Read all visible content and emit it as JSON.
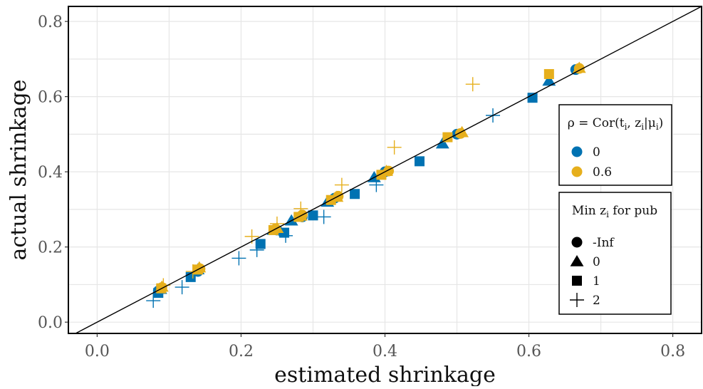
{
  "chart_data": {
    "type": "scatter",
    "title": "",
    "xlabel": "estimated shrinkage",
    "ylabel": "actual shrinkage",
    "xlim": [
      -0.04,
      0.84
    ],
    "ylim": [
      -0.03,
      0.84
    ],
    "xticks": [
      0.0,
      0.2,
      0.4,
      0.6,
      0.8
    ],
    "yticks": [
      0.0,
      0.2,
      0.4,
      0.6,
      0.8
    ],
    "xtick_labels": [
      "0.0",
      "0.2",
      "0.4",
      "0.6",
      "0.8"
    ],
    "ytick_labels": [
      "0.0",
      "0.2",
      "0.4",
      "0.6",
      "0.8"
    ],
    "grid": true,
    "reference_line": "y = x",
    "colors": {
      "0": "#0072B2",
      "0.6": "#E6AF1C"
    },
    "legend_color": {
      "title": "ρ = Cor(t_i, z_i | μ_i)",
      "entries": [
        {
          "label": "0",
          "color": "#0072B2"
        },
        {
          "label": "0.6",
          "color": "#E6AF1C"
        }
      ]
    },
    "legend_shape": {
      "title": "Min z_i for pub",
      "entries": [
        {
          "label": "-Inf",
          "shape": "circle"
        },
        {
          "label": "0",
          "shape": "triangle"
        },
        {
          "label": "1",
          "shape": "square"
        },
        {
          "label": "2",
          "shape": "plus"
        }
      ]
    },
    "points": [
      {
        "x": 0.085,
        "y": 0.083,
        "rho": "0",
        "min_z": "-Inf"
      },
      {
        "x": 0.14,
        "y": 0.135,
        "rho": "0",
        "min_z": "-Inf"
      },
      {
        "x": 0.25,
        "y": 0.245,
        "rho": "0",
        "min_z": "-Inf"
      },
      {
        "x": 0.285,
        "y": 0.28,
        "rho": "0",
        "min_z": "-Inf"
      },
      {
        "x": 0.33,
        "y": 0.33,
        "rho": "0",
        "min_z": "-Inf"
      },
      {
        "x": 0.4,
        "y": 0.4,
        "rho": "0",
        "min_z": "-Inf"
      },
      {
        "x": 0.5,
        "y": 0.5,
        "rho": "0",
        "min_z": "-Inf"
      },
      {
        "x": 0.665,
        "y": 0.672,
        "rho": "0",
        "min_z": "-Inf"
      },
      {
        "x": 0.088,
        "y": 0.088,
        "rho": "0",
        "min_z": "0"
      },
      {
        "x": 0.14,
        "y": 0.14,
        "rho": "0",
        "min_z": "0"
      },
      {
        "x": 0.245,
        "y": 0.245,
        "rho": "0",
        "min_z": "0"
      },
      {
        "x": 0.27,
        "y": 0.27,
        "rho": "0",
        "min_z": "0"
      },
      {
        "x": 0.32,
        "y": 0.32,
        "rho": "0",
        "min_z": "0"
      },
      {
        "x": 0.385,
        "y": 0.385,
        "rho": "0",
        "min_z": "0"
      },
      {
        "x": 0.48,
        "y": 0.475,
        "rho": "0",
        "min_z": "0"
      },
      {
        "x": 0.628,
        "y": 0.642,
        "rho": "0",
        "min_z": "0"
      },
      {
        "x": 0.085,
        "y": 0.078,
        "rho": "0",
        "min_z": "1"
      },
      {
        "x": 0.13,
        "y": 0.12,
        "rho": "0",
        "min_z": "1"
      },
      {
        "x": 0.227,
        "y": 0.208,
        "rho": "0",
        "min_z": "1"
      },
      {
        "x": 0.26,
        "y": 0.238,
        "rho": "0",
        "min_z": "1"
      },
      {
        "x": 0.3,
        "y": 0.284,
        "rho": "0",
        "min_z": "1"
      },
      {
        "x": 0.358,
        "y": 0.341,
        "rho": "0",
        "min_z": "1"
      },
      {
        "x": 0.448,
        "y": 0.428,
        "rho": "0",
        "min_z": "1"
      },
      {
        "x": 0.605,
        "y": 0.597,
        "rho": "0",
        "min_z": "1"
      },
      {
        "x": 0.078,
        "y": 0.057,
        "rho": "0",
        "min_z": "2"
      },
      {
        "x": 0.118,
        "y": 0.093,
        "rho": "0",
        "min_z": "2"
      },
      {
        "x": 0.197,
        "y": 0.17,
        "rho": "0",
        "min_z": "2"
      },
      {
        "x": 0.222,
        "y": 0.192,
        "rho": "0",
        "min_z": "2"
      },
      {
        "x": 0.262,
        "y": 0.23,
        "rho": "0",
        "min_z": "2"
      },
      {
        "x": 0.315,
        "y": 0.28,
        "rho": "0",
        "min_z": "2"
      },
      {
        "x": 0.388,
        "y": 0.365,
        "rho": "0",
        "min_z": "2"
      },
      {
        "x": 0.55,
        "y": 0.55,
        "rho": "0",
        "min_z": "2"
      },
      {
        "x": 0.09,
        "y": 0.092,
        "rho": "0.6",
        "min_z": "-Inf"
      },
      {
        "x": 0.143,
        "y": 0.142,
        "rho": "0.6",
        "min_z": "-Inf"
      },
      {
        "x": 0.248,
        "y": 0.248,
        "rho": "0.6",
        "min_z": "-Inf"
      },
      {
        "x": 0.285,
        "y": 0.285,
        "rho": "0.6",
        "min_z": "-Inf"
      },
      {
        "x": 0.335,
        "y": 0.335,
        "rho": "0.6",
        "min_z": "-Inf"
      },
      {
        "x": 0.405,
        "y": 0.402,
        "rho": "0.6",
        "min_z": "-Inf"
      },
      {
        "x": 0.505,
        "y": 0.502,
        "rho": "0.6",
        "min_z": "-Inf"
      },
      {
        "x": 0.67,
        "y": 0.675,
        "rho": "0.6",
        "min_z": "-Inf"
      },
      {
        "x": 0.09,
        "y": 0.094,
        "rho": "0.6",
        "min_z": "0"
      },
      {
        "x": 0.142,
        "y": 0.145,
        "rho": "0.6",
        "min_z": "0"
      },
      {
        "x": 0.25,
        "y": 0.25,
        "rho": "0.6",
        "min_z": "0"
      },
      {
        "x": 0.283,
        "y": 0.283,
        "rho": "0.6",
        "min_z": "0"
      },
      {
        "x": 0.333,
        "y": 0.333,
        "rho": "0.6",
        "min_z": "0"
      },
      {
        "x": 0.402,
        "y": 0.402,
        "rho": "0.6",
        "min_z": "0"
      },
      {
        "x": 0.507,
        "y": 0.505,
        "rho": "0.6",
        "min_z": "0"
      },
      {
        "x": 0.67,
        "y": 0.676,
        "rho": "0.6",
        "min_z": "0"
      },
      {
        "x": 0.089,
        "y": 0.09,
        "rho": "0.6",
        "min_z": "1"
      },
      {
        "x": 0.14,
        "y": 0.14,
        "rho": "0.6",
        "min_z": "1"
      },
      {
        "x": 0.245,
        "y": 0.245,
        "rho": "0.6",
        "min_z": "1"
      },
      {
        "x": 0.28,
        "y": 0.28,
        "rho": "0.6",
        "min_z": "1"
      },
      {
        "x": 0.325,
        "y": 0.325,
        "rho": "0.6",
        "min_z": "1"
      },
      {
        "x": 0.395,
        "y": 0.392,
        "rho": "0.6",
        "min_z": "1"
      },
      {
        "x": 0.487,
        "y": 0.492,
        "rho": "0.6",
        "min_z": "1"
      },
      {
        "x": 0.628,
        "y": 0.66,
        "rho": "0.6",
        "min_z": "1"
      },
      {
        "x": 0.092,
        "y": 0.098,
        "rho": "0.6",
        "min_z": "2"
      },
      {
        "x": 0.133,
        "y": 0.135,
        "rho": "0.6",
        "min_z": "2"
      },
      {
        "x": 0.215,
        "y": 0.228,
        "rho": "0.6",
        "min_z": "2"
      },
      {
        "x": 0.25,
        "y": 0.262,
        "rho": "0.6",
        "min_z": "2"
      },
      {
        "x": 0.283,
        "y": 0.302,
        "rho": "0.6",
        "min_z": "2"
      },
      {
        "x": 0.34,
        "y": 0.365,
        "rho": "0.6",
        "min_z": "2"
      },
      {
        "x": 0.413,
        "y": 0.465,
        "rho": "0.6",
        "min_z": "2"
      },
      {
        "x": 0.522,
        "y": 0.633,
        "rho": "0.6",
        "min_z": "2"
      }
    ]
  }
}
